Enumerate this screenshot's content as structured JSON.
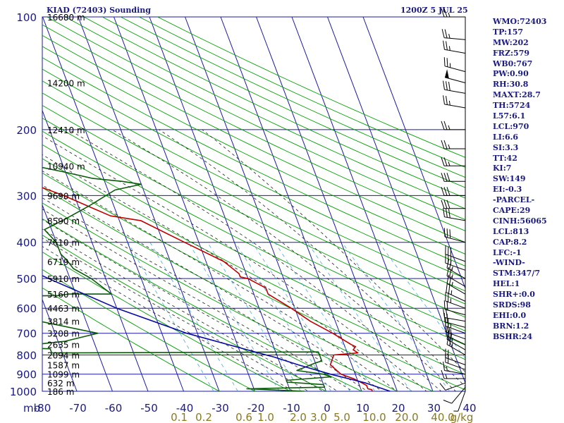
{
  "header": {
    "station": "KIAD (72403) Sounding",
    "time": "1200Z  5 JUL 25"
  },
  "indices": [
    "WMO:72403",
    "TP:157",
    "MW:202",
    "FRZ:579",
    "WB0:767",
    "PW:0.90",
    "RH:30.8",
    "MAXT:28.7",
    "TH:5724",
    "L57:6.1",
    "LCL:970",
    "LI:6.6",
    "SI:3.3",
    "TT:42",
    "KI:7",
    "SW:149",
    "EI:-0.3",
    "-PARCEL-",
    "CAPE:29",
    "CINH:56065",
    "LCL:813",
    "CAP:8.2",
    "LFC:-1",
    "-WIND-",
    "STM:347/7",
    "HEL:1",
    "SHR+:0.0",
    "SRDS:98",
    "EHI:0.0",
    "BRN:1.2",
    "BSHR:24"
  ],
  "colors": {
    "grid": "#1a1aa0",
    "temperature": "#c00000",
    "dewpoint": "#0a5a0a",
    "parcel": "#0a0aa0",
    "dry_adiabat": "#00a000",
    "moist_adiabat": "#202020",
    "mixing_ratio": "#4aa8d8",
    "mixing_label": "#8a7a20",
    "text": "#1a1a80"
  },
  "chart_data": {
    "type": "line",
    "title": "KIAD (72403) Sounding",
    "x_axis": {
      "units_label": "mb",
      "ticks": [
        -80,
        -70,
        -60,
        -50,
        -40,
        -30,
        -20,
        -10,
        0,
        10,
        20,
        30,
        40
      ],
      "range": [
        -80,
        40
      ]
    },
    "y_axis": {
      "scale": "log",
      "pressure_ticks": [
        100,
        200,
        300,
        400,
        500,
        600,
        700,
        800,
        900,
        1000
      ],
      "range": [
        100,
        1000
      ]
    },
    "height_labels": [
      {
        "p": 100,
        "label": "16680 m"
      },
      {
        "p": 150,
        "label": "14200 m"
      },
      {
        "p": 200,
        "label": "12410 m"
      },
      {
        "p": 250,
        "label": "10940 m"
      },
      {
        "p": 300,
        "label": "9690 m"
      },
      {
        "p": 350,
        "label": "8590 m"
      },
      {
        "p": 400,
        "label": "7610 m"
      },
      {
        "p": 450,
        "label": "6719 m"
      },
      {
        "p": 500,
        "label": "5910 m"
      },
      {
        "p": 550,
        "label": "5160 m"
      },
      {
        "p": 600,
        "label": "4463 m"
      },
      {
        "p": 650,
        "label": "3814 m"
      },
      {
        "p": 700,
        "label": "3208 m"
      },
      {
        "p": 750,
        "label": "2635 m"
      },
      {
        "p": 800,
        "label": "2094 m"
      },
      {
        "p": 850,
        "label": "1587 m"
      },
      {
        "p": 900,
        "label": "1099 m"
      },
      {
        "p": 950,
        "label": "632 m"
      },
      {
        "p": 1000,
        "label": "186 m"
      }
    ],
    "mixing_ratio_labels": [
      "0.1",
      "0.2",
      "0.6",
      "1.0",
      "2.0",
      "3.0",
      "5.0",
      "10.0",
      "20.0",
      "40.0",
      "g/kg"
    ],
    "series": [
      {
        "key": "temperature",
        "points": [
          [
            1000,
            0.3
          ],
          [
            990,
            0.3
          ],
          [
            985,
            0.2
          ],
          [
            965,
            0.2
          ],
          [
            950,
            0.1
          ],
          [
            925,
            -0.1
          ],
          [
            900,
            -0.4
          ],
          [
            850,
            -0.6
          ],
          [
            800,
            -0.4
          ],
          [
            790,
            0.3
          ],
          [
            775,
            0.2
          ],
          [
            760,
            0.3
          ],
          [
            750,
            0.2
          ],
          [
            725,
            0.0
          ],
          [
            700,
            -0.2
          ],
          [
            650,
            -0.7
          ],
          [
            600,
            -1.1
          ],
          [
            550,
            -1.6
          ],
          [
            530,
            -1.6
          ],
          [
            500,
            -2.0
          ],
          [
            495,
            -2.2
          ],
          [
            485,
            -2.2
          ],
          [
            450,
            -2.5
          ],
          [
            400,
            -3.4
          ],
          [
            350,
            -4.4
          ],
          [
            340,
            -5.2
          ],
          [
            300,
            -6.3
          ],
          [
            260,
            -7.8
          ],
          [
            250,
            -8.4
          ],
          [
            200,
            -10.5
          ],
          [
            175,
            -11.9
          ],
          [
            158,
            -13.0
          ],
          [
            150,
            -13.1
          ],
          [
            145,
            -13.4
          ],
          [
            120,
            -14.9
          ],
          [
            100,
            -16.3
          ]
        ]
      },
      {
        "key": "dewpoint",
        "points": [
          [
            1000,
            -1.6
          ],
          [
            985,
            -3.2
          ],
          [
            975,
            -1.0
          ],
          [
            960,
            -1.0
          ],
          [
            945,
            -2.0
          ],
          [
            935,
            -2.0
          ],
          [
            915,
            -0.7
          ],
          [
            900,
            -0.9
          ],
          [
            880,
            -1.6
          ],
          [
            860,
            -1.3
          ],
          [
            840,
            -1.0
          ],
          [
            830,
            -0.8
          ],
          [
            805,
            -0.8
          ],
          [
            785,
            -0.8
          ],
          [
            790,
            -8.3
          ],
          [
            770,
            -8.3
          ],
          [
            765,
            -9.5
          ],
          [
            735,
            -7.8
          ],
          [
            700,
            -6.8
          ],
          [
            650,
            -8.3
          ],
          [
            600,
            -9.4
          ],
          [
            585,
            -11.6
          ],
          [
            570,
            -8.8
          ],
          [
            560,
            -10.0
          ],
          [
            555,
            -7.5
          ],
          [
            550,
            -7.2
          ],
          [
            550,
            -6.0
          ],
          [
            500,
            -6.4
          ],
          [
            470,
            -6.8
          ],
          [
            445,
            -6.9
          ],
          [
            430,
            -7.0
          ],
          [
            400,
            -7.0
          ],
          [
            370,
            -7.2
          ],
          [
            350,
            -6.6
          ],
          [
            320,
            -5.7
          ],
          [
            290,
            -4.8
          ],
          [
            280,
            -4.0
          ],
          [
            275,
            -4.5
          ],
          [
            270,
            -5.3
          ],
          [
            260,
            -6.0
          ],
          [
            250,
            -6.8
          ],
          [
            245,
            -7.3
          ],
          [
            225,
            -8.1
          ],
          [
            200,
            -9.4
          ],
          [
            170,
            -11.2
          ],
          [
            150,
            -12.4
          ],
          [
            140,
            -12.9
          ],
          [
            120,
            -15.6
          ],
          [
            100,
            -18.9
          ]
        ]
      },
      {
        "key": "parcel",
        "points": [
          [
            1000,
            0.8
          ],
          [
            950,
            0.2
          ],
          [
            900,
            -0.7
          ],
          [
            850,
            -1.5
          ],
          [
            810,
            -2.1
          ],
          [
            800,
            -2.3
          ],
          [
            700,
            -4.3
          ],
          [
            600,
            -6.0
          ],
          [
            500,
            -7.6
          ],
          [
            400,
            -9.4
          ],
          [
            300,
            -11.7
          ],
          [
            250,
            -13.0
          ],
          [
            200,
            -14.6
          ],
          [
            150,
            -16.2
          ],
          [
            100,
            -17.8
          ]
        ]
      }
    ],
    "grid": true,
    "legend": "none"
  },
  "wind_barbs": [
    {
      "p": 1000,
      "dir": 200,
      "kt": 5
    },
    {
      "p": 975,
      "dir": 220,
      "kt": 10
    },
    {
      "p": 950,
      "dir": 250,
      "kt": 10
    },
    {
      "p": 925,
      "dir": 270,
      "kt": 15
    },
    {
      "p": 900,
      "dir": 280,
      "kt": 15
    },
    {
      "p": 875,
      "dir": 290,
      "kt": 20
    },
    {
      "p": 850,
      "dir": 290,
      "kt": 20
    },
    {
      "p": 800,
      "dir": 300,
      "kt": 25
    },
    {
      "p": 775,
      "dir": 300,
      "kt": 25
    },
    {
      "p": 750,
      "dir": 295,
      "kt": 25
    },
    {
      "p": 725,
      "dir": 290,
      "kt": 25
    },
    {
      "p": 700,
      "dir": 290,
      "kt": 25
    },
    {
      "p": 675,
      "dir": 285,
      "kt": 20
    },
    {
      "p": 650,
      "dir": 280,
      "kt": 20
    },
    {
      "p": 625,
      "dir": 285,
      "kt": 20
    },
    {
      "p": 600,
      "dir": 290,
      "kt": 25
    },
    {
      "p": 575,
      "dir": 295,
      "kt": 25
    },
    {
      "p": 550,
      "dir": 300,
      "kt": 25
    },
    {
      "p": 525,
      "dir": 300,
      "kt": 25
    },
    {
      "p": 500,
      "dir": 300,
      "kt": 25
    },
    {
      "p": 475,
      "dir": 290,
      "kt": 30
    },
    {
      "p": 450,
      "dir": 290,
      "kt": 30
    },
    {
      "p": 400,
      "dir": 285,
      "kt": 30
    },
    {
      "p": 350,
      "dir": 280,
      "kt": 30
    },
    {
      "p": 325,
      "dir": 270,
      "kt": 30
    },
    {
      "p": 300,
      "dir": 270,
      "kt": 30
    },
    {
      "p": 275,
      "dir": 270,
      "kt": 30
    },
    {
      "p": 250,
      "dir": 270,
      "kt": 25
    },
    {
      "p": 225,
      "dir": 270,
      "kt": 25
    },
    {
      "p": 200,
      "dir": 270,
      "kt": 25
    },
    {
      "p": 175,
      "dir": 280,
      "kt": 25
    },
    {
      "p": 160,
      "dir": 280,
      "kt": 30
    },
    {
      "p": 150,
      "dir": 285,
      "kt": 50
    },
    {
      "p": 140,
      "dir": 285,
      "kt": 25
    },
    {
      "p": 125,
      "dir": 280,
      "kt": 25
    },
    {
      "p": 115,
      "dir": 275,
      "kt": 25
    },
    {
      "p": 100,
      "dir": 270,
      "kt": 25
    }
  ]
}
